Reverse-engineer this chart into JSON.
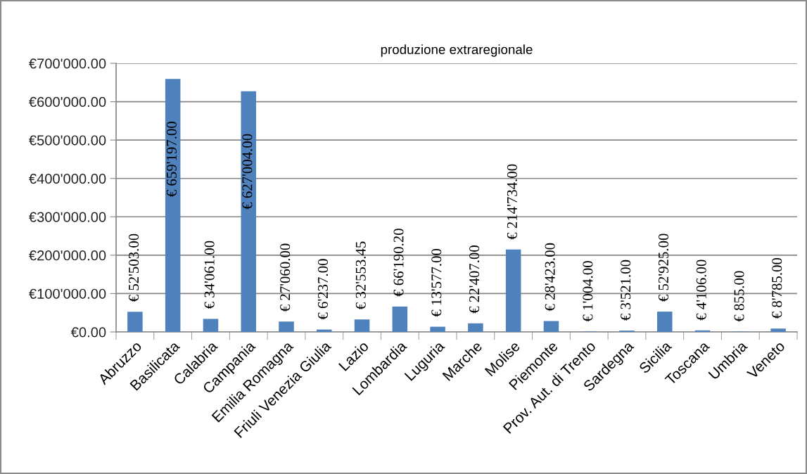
{
  "chart_data": {
    "type": "bar",
    "title": "produzione extraregionale",
    "categories": [
      "Abruzzo",
      "Basilicata",
      "Calabria",
      "Campania",
      "Emilia Romagna",
      "Friuli Venezia Giulia",
      "Lazio",
      "Lombardia",
      "Luguria",
      "Marche",
      "Molise",
      "Piemonte",
      "Prov. Aut. di Trento",
      "Sardegna",
      "Sicilia",
      "Toscana",
      "Umbria",
      "Veneto"
    ],
    "values": [
      52503,
      659197,
      34061,
      627004,
      27060,
      6237,
      32553.45,
      66190.2,
      13577,
      22407,
      214734,
      28423,
      1004,
      3521,
      52925,
      4106,
      855,
      8785
    ],
    "value_labels": [
      "€ 52'503.00",
      "€ 659'197.00",
      "€ 34'061.00",
      "€ 627'004.00",
      "€ 27'060.00",
      "€ 6'237.00",
      "€ 32'553.45",
      "€ 66'190.20",
      "€ 13'577.00",
      "€ 22'407.00",
      "€ 214'734.00",
      "€ 28'423.00",
      "€ 1'004.00",
      "€ 3'521.00",
      "€ 52'925.00",
      "€ 4'106.00",
      "€ 855.00",
      "€ 8'785.00"
    ],
    "color": "#4f81bd",
    "ylim": [
      0,
      700000
    ],
    "yticks": [
      {
        "value": 0,
        "label": "€0.00"
      },
      {
        "value": 100000,
        "label": "€100'000.00"
      },
      {
        "value": 200000,
        "label": "€200'000.00"
      },
      {
        "value": 300000,
        "label": "€300'000.00"
      },
      {
        "value": 400000,
        "label": "€400'000.00"
      },
      {
        "value": 500000,
        "label": "€500'000.00"
      },
      {
        "value": 600000,
        "label": "€600'000.00"
      },
      {
        "value": 700000,
        "label": "€700'000.00"
      }
    ],
    "grid": "y",
    "legend": false
  }
}
